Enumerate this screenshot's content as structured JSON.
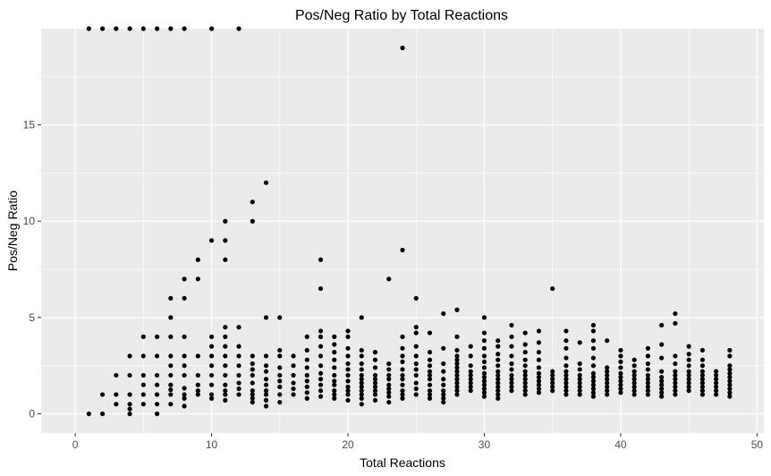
{
  "chart_data": {
    "type": "scatter",
    "title": "Pos/Neg Ratio by Total Reactions",
    "xlabel": "Total Reactions",
    "ylabel": "Pos/Neg Ratio",
    "xlim": [
      -2.5,
      50.5
    ],
    "ylim": [
      -1,
      20
    ],
    "xticks": [
      0,
      10,
      20,
      30,
      40,
      50
    ],
    "yticks": [
      0,
      5,
      10,
      15
    ],
    "grid": true,
    "panel_color": "#ebebeb",
    "grid_color": "#ffffff",
    "point_color": "#000000",
    "points": [
      [
        1,
        0
      ],
      [
        2,
        0
      ],
      [
        2,
        1
      ],
      [
        3,
        0.5
      ],
      [
        3,
        1
      ],
      [
        3,
        2
      ],
      [
        4,
        0
      ],
      [
        4,
        0.25
      ],
      [
        4,
        0.5
      ],
      [
        4,
        1
      ],
      [
        4,
        2
      ],
      [
        4,
        3
      ],
      [
        5,
        0.5
      ],
      [
        5,
        1
      ],
      [
        5,
        1.5
      ],
      [
        5,
        2
      ],
      [
        5,
        3
      ],
      [
        5,
        4
      ],
      [
        6,
        0
      ],
      [
        6,
        0.5
      ],
      [
        6,
        1
      ],
      [
        6,
        1.5
      ],
      [
        6,
        2
      ],
      [
        6,
        3
      ],
      [
        6,
        4
      ],
      [
        7,
        0.5
      ],
      [
        7,
        1
      ],
      [
        7,
        1.25
      ],
      [
        7,
        1.5
      ],
      [
        7,
        2
      ],
      [
        7,
        2.5
      ],
      [
        7,
        3
      ],
      [
        7,
        4
      ],
      [
        7,
        5
      ],
      [
        7,
        6
      ],
      [
        8,
        0.4
      ],
      [
        8,
        0.8
      ],
      [
        8,
        1
      ],
      [
        8,
        1.33
      ],
      [
        8,
        2
      ],
      [
        8,
        2.5
      ],
      [
        8,
        3
      ],
      [
        8,
        4
      ],
      [
        8,
        6
      ],
      [
        8,
        7
      ],
      [
        9,
        1
      ],
      [
        9,
        1.2
      ],
      [
        9,
        1.5
      ],
      [
        9,
        2
      ],
      [
        9,
        3
      ],
      [
        9,
        7
      ],
      [
        9,
        8
      ],
      [
        10,
        0.8
      ],
      [
        10,
        1
      ],
      [
        10,
        1.5
      ],
      [
        10,
        2
      ],
      [
        10,
        2.5
      ],
      [
        10,
        3
      ],
      [
        10,
        3.5
      ],
      [
        10,
        4
      ],
      [
        10,
        9
      ],
      [
        11,
        0.7
      ],
      [
        11,
        1
      ],
      [
        11,
        1.2
      ],
      [
        11,
        1.5
      ],
      [
        11,
        2
      ],
      [
        11,
        2.5
      ],
      [
        11,
        3
      ],
      [
        11,
        3.5
      ],
      [
        11,
        4
      ],
      [
        11,
        4.5
      ],
      [
        11,
        8
      ],
      [
        11,
        9
      ],
      [
        11,
        10
      ],
      [
        12,
        1
      ],
      [
        12,
        1.3
      ],
      [
        12,
        1.6
      ],
      [
        12,
        2
      ],
      [
        12,
        2.5
      ],
      [
        12,
        3
      ],
      [
        12,
        3.5
      ],
      [
        12,
        4.5
      ],
      [
        13,
        0.6
      ],
      [
        13,
        0.8
      ],
      [
        13,
        1
      ],
      [
        13,
        1.2
      ],
      [
        13,
        1.6
      ],
      [
        13,
        2
      ],
      [
        13,
        2.3
      ],
      [
        13,
        2.6
      ],
      [
        13,
        3
      ],
      [
        13,
        10
      ],
      [
        13,
        11
      ],
      [
        14,
        0.4
      ],
      [
        14,
        0.7
      ],
      [
        14,
        1
      ],
      [
        14,
        1.2
      ],
      [
        14,
        1.5
      ],
      [
        14,
        1.8
      ],
      [
        14,
        2.2
      ],
      [
        14,
        2.5
      ],
      [
        14,
        3
      ],
      [
        14,
        5
      ],
      [
        14,
        12
      ],
      [
        15,
        0.6
      ],
      [
        15,
        1
      ],
      [
        15,
        1.4
      ],
      [
        15,
        1.7
      ],
      [
        15,
        2
      ],
      [
        15,
        2.4
      ],
      [
        15,
        3
      ],
      [
        15,
        3.3
      ],
      [
        15,
        5
      ],
      [
        16,
        1
      ],
      [
        16,
        1.3
      ],
      [
        16,
        1.6
      ],
      [
        16,
        2
      ],
      [
        16,
        2.5
      ],
      [
        16,
        3
      ],
      [
        17,
        0.8
      ],
      [
        17,
        1.1
      ],
      [
        17,
        1.4
      ],
      [
        17,
        1.7
      ],
      [
        17,
        2
      ],
      [
        17,
        2.4
      ],
      [
        17,
        2.8
      ],
      [
        17,
        3.3
      ],
      [
        17,
        4
      ],
      [
        18,
        0.9
      ],
      [
        18,
        1.2
      ],
      [
        18,
        1.5
      ],
      [
        18,
        1.8
      ],
      [
        18,
        2.1
      ],
      [
        18,
        2.5
      ],
      [
        18,
        3
      ],
      [
        18,
        3.5
      ],
      [
        18,
        4
      ],
      [
        18,
        4.3
      ],
      [
        18,
        6.5
      ],
      [
        18,
        8
      ],
      [
        19,
        0.8
      ],
      [
        19,
        1
      ],
      [
        19,
        1.2
      ],
      [
        19,
        1.5
      ],
      [
        19,
        1.7
      ],
      [
        19,
        2
      ],
      [
        19,
        2.4
      ],
      [
        19,
        2.8
      ],
      [
        19,
        3.2
      ],
      [
        19,
        3.6
      ],
      [
        19,
        4
      ],
      [
        20,
        0.7
      ],
      [
        20,
        1
      ],
      [
        20,
        1.2
      ],
      [
        20,
        1.4
      ],
      [
        20,
        1.7
      ],
      [
        20,
        2
      ],
      [
        20,
        2.3
      ],
      [
        20,
        2.6
      ],
      [
        20,
        3
      ],
      [
        20,
        3.4
      ],
      [
        20,
        4
      ],
      [
        20,
        4.3
      ],
      [
        21,
        0.5
      ],
      [
        21,
        0.8
      ],
      [
        21,
        1
      ],
      [
        21,
        1.2
      ],
      [
        21,
        1.4
      ],
      [
        21,
        1.6
      ],
      [
        21,
        1.8
      ],
      [
        21,
        2
      ],
      [
        21,
        2.3
      ],
      [
        21,
        2.6
      ],
      [
        21,
        3
      ],
      [
        21,
        3.3
      ],
      [
        21,
        5
      ],
      [
        22,
        0.7
      ],
      [
        22,
        1
      ],
      [
        22,
        1.2
      ],
      [
        22,
        1.4
      ],
      [
        22,
        1.6
      ],
      [
        22,
        1.8
      ],
      [
        22,
        2
      ],
      [
        22,
        2.4
      ],
      [
        22,
        2.8
      ],
      [
        22,
        3.2
      ],
      [
        23,
        0.6
      ],
      [
        23,
        0.9
      ],
      [
        23,
        1.1
      ],
      [
        23,
        1.3
      ],
      [
        23,
        1.5
      ],
      [
        23,
        1.8
      ],
      [
        23,
        2
      ],
      [
        23,
        2.3
      ],
      [
        23,
        2.6
      ],
      [
        23,
        7
      ],
      [
        24,
        0.8
      ],
      [
        24,
        1
      ],
      [
        24,
        1.2
      ],
      [
        24,
        1.5
      ],
      [
        24,
        1.8
      ],
      [
        24,
        2
      ],
      [
        24,
        2.3
      ],
      [
        24,
        2.7
      ],
      [
        24,
        3
      ],
      [
        24,
        3.4
      ],
      [
        24,
        4
      ],
      [
        24,
        8.5
      ],
      [
        24,
        19
      ],
      [
        25,
        1
      ],
      [
        25,
        1.3
      ],
      [
        25,
        1.6
      ],
      [
        25,
        2
      ],
      [
        25,
        2.3
      ],
      [
        25,
        2.6
      ],
      [
        25,
        3
      ],
      [
        25,
        3.5
      ],
      [
        25,
        4.2
      ],
      [
        25,
        4.5
      ],
      [
        25,
        6
      ],
      [
        26,
        0.8
      ],
      [
        26,
        1
      ],
      [
        26,
        1.2
      ],
      [
        26,
        1.5
      ],
      [
        26,
        1.8
      ],
      [
        26,
        2
      ],
      [
        26,
        2.2
      ],
      [
        26,
        2.5
      ],
      [
        26,
        2.8
      ],
      [
        26,
        3.2
      ],
      [
        26,
        4.2
      ],
      [
        27,
        0.6
      ],
      [
        27,
        0.8
      ],
      [
        27,
        1
      ],
      [
        27,
        1.2
      ],
      [
        27,
        1.5
      ],
      [
        27,
        1.8
      ],
      [
        27,
        2.2
      ],
      [
        27,
        2.6
      ],
      [
        27,
        3.4
      ],
      [
        27,
        5.2
      ],
      [
        28,
        1
      ],
      [
        28,
        1.2
      ],
      [
        28,
        1.4
      ],
      [
        28,
        1.6
      ],
      [
        28,
        1.8
      ],
      [
        28,
        2
      ],
      [
        28,
        2.2
      ],
      [
        28,
        2.4
      ],
      [
        28,
        2.6
      ],
      [
        28,
        2.8
      ],
      [
        28,
        3
      ],
      [
        28,
        3.3
      ],
      [
        28,
        4
      ],
      [
        28,
        5.4
      ],
      [
        29,
        1.2
      ],
      [
        29,
        1.4
      ],
      [
        29,
        1.6
      ],
      [
        29,
        1.8
      ],
      [
        29,
        2
      ],
      [
        29,
        2.2
      ],
      [
        29,
        2.5
      ],
      [
        29,
        3
      ],
      [
        29,
        3.5
      ],
      [
        30,
        0.9
      ],
      [
        30,
        1.1
      ],
      [
        30,
        1.3
      ],
      [
        30,
        1.5
      ],
      [
        30,
        1.7
      ],
      [
        30,
        1.9
      ],
      [
        30,
        2.1
      ],
      [
        30,
        2.4
      ],
      [
        30,
        2.7
      ],
      [
        30,
        3
      ],
      [
        30,
        3.4
      ],
      [
        30,
        3.8
      ],
      [
        30,
        4.2
      ],
      [
        30,
        5
      ],
      [
        31,
        0.8
      ],
      [
        31,
        1
      ],
      [
        31,
        1.2
      ],
      [
        31,
        1.4
      ],
      [
        31,
        1.6
      ],
      [
        31,
        1.8
      ],
      [
        31,
        2
      ],
      [
        31,
        2.2
      ],
      [
        31,
        2.5
      ],
      [
        31,
        2.8
      ],
      [
        31,
        3.1
      ],
      [
        31,
        3.5
      ],
      [
        31,
        3.8
      ],
      [
        32,
        1.2
      ],
      [
        32,
        1.4
      ],
      [
        32,
        1.6
      ],
      [
        32,
        1.8
      ],
      [
        32,
        2
      ],
      [
        32,
        2.3
      ],
      [
        32,
        2.6
      ],
      [
        32,
        3
      ],
      [
        32,
        3.5
      ],
      [
        32,
        4
      ],
      [
        32,
        4.6
      ],
      [
        33,
        1
      ],
      [
        33,
        1.2
      ],
      [
        33,
        1.4
      ],
      [
        33,
        1.6
      ],
      [
        33,
        1.8
      ],
      [
        33,
        2
      ],
      [
        33,
        2.2
      ],
      [
        33,
        2.5
      ],
      [
        33,
        2.8
      ],
      [
        33,
        3.2
      ],
      [
        33,
        3.6
      ],
      [
        33,
        4.2
      ],
      [
        34,
        1.1
      ],
      [
        34,
        1.3
      ],
      [
        34,
        1.5
      ],
      [
        34,
        1.7
      ],
      [
        34,
        1.9
      ],
      [
        34,
        2.1
      ],
      [
        34,
        2.4
      ],
      [
        34,
        2.8
      ],
      [
        34,
        3.2
      ],
      [
        34,
        3.7
      ],
      [
        34,
        4.3
      ],
      [
        35,
        1.2
      ],
      [
        35,
        1.4
      ],
      [
        35,
        1.6
      ],
      [
        35,
        1.8
      ],
      [
        35,
        2
      ],
      [
        35,
        2.2
      ],
      [
        35,
        6.5
      ],
      [
        36,
        1
      ],
      [
        36,
        1.2
      ],
      [
        36,
        1.4
      ],
      [
        36,
        1.6
      ],
      [
        36,
        1.8
      ],
      [
        36,
        2
      ],
      [
        36,
        2.2
      ],
      [
        36,
        2.5
      ],
      [
        36,
        2.9
      ],
      [
        36,
        3.4
      ],
      [
        36,
        3.8
      ],
      [
        36,
        4.3
      ],
      [
        37,
        1
      ],
      [
        37,
        1.2
      ],
      [
        37,
        1.4
      ],
      [
        37,
        1.6
      ],
      [
        37,
        1.8
      ],
      [
        37,
        2
      ],
      [
        37,
        2.3
      ],
      [
        37,
        2.6
      ],
      [
        37,
        3.7
      ],
      [
        38,
        0.9
      ],
      [
        38,
        1.1
      ],
      [
        38,
        1.3
      ],
      [
        38,
        1.5
      ],
      [
        38,
        1.7
      ],
      [
        38,
        1.9
      ],
      [
        38,
        2.1
      ],
      [
        38,
        2.5
      ],
      [
        38,
        2.9
      ],
      [
        38,
        3.4
      ],
      [
        38,
        3.8
      ],
      [
        38,
        4.3
      ],
      [
        38,
        4.6
      ],
      [
        39,
        1
      ],
      [
        39,
        1.2
      ],
      [
        39,
        1.4
      ],
      [
        39,
        1.6
      ],
      [
        39,
        1.8
      ],
      [
        39,
        2
      ],
      [
        39,
        2.2
      ],
      [
        39,
        2.4
      ],
      [
        39,
        3.8
      ],
      [
        40,
        1.1
      ],
      [
        40,
        1.3
      ],
      [
        40,
        1.5
      ],
      [
        40,
        1.7
      ],
      [
        40,
        1.9
      ],
      [
        40,
        2.1
      ],
      [
        40,
        2.4
      ],
      [
        40,
        2.7
      ],
      [
        40,
        3
      ],
      [
        40,
        3.3
      ],
      [
        41,
        1
      ],
      [
        41,
        1.2
      ],
      [
        41,
        1.4
      ],
      [
        41,
        1.6
      ],
      [
        41,
        1.8
      ],
      [
        41,
        2
      ],
      [
        41,
        2.2
      ],
      [
        41,
        2.5
      ],
      [
        41,
        2.8
      ],
      [
        42,
        1
      ],
      [
        42,
        1.2
      ],
      [
        42,
        1.4
      ],
      [
        42,
        1.6
      ],
      [
        42,
        1.8
      ],
      [
        42,
        2
      ],
      [
        42,
        2.3
      ],
      [
        42,
        2.6
      ],
      [
        42,
        3
      ],
      [
        42,
        3.4
      ],
      [
        43,
        0.9
      ],
      [
        43,
        1.1
      ],
      [
        43,
        1.3
      ],
      [
        43,
        1.5
      ],
      [
        43,
        1.7
      ],
      [
        43,
        1.9
      ],
      [
        43,
        2.2
      ],
      [
        43,
        2.9
      ],
      [
        43,
        3.6
      ],
      [
        43,
        4.6
      ],
      [
        44,
        1
      ],
      [
        44,
        1.2
      ],
      [
        44,
        1.4
      ],
      [
        44,
        1.6
      ],
      [
        44,
        1.8
      ],
      [
        44,
        2
      ],
      [
        44,
        2.2
      ],
      [
        44,
        2.6
      ],
      [
        44,
        3
      ],
      [
        44,
        4.7
      ],
      [
        44,
        5.2
      ],
      [
        45,
        1.2
      ],
      [
        45,
        1.4
      ],
      [
        45,
        1.6
      ],
      [
        45,
        1.8
      ],
      [
        45,
        2
      ],
      [
        45,
        2.2
      ],
      [
        45,
        2.5
      ],
      [
        45,
        2.8
      ],
      [
        45,
        3.1
      ],
      [
        45,
        3.5
      ],
      [
        46,
        1
      ],
      [
        46,
        1.2
      ],
      [
        46,
        1.4
      ],
      [
        46,
        1.6
      ],
      [
        46,
        1.8
      ],
      [
        46,
        2
      ],
      [
        46,
        2.2
      ],
      [
        46,
        2.5
      ],
      [
        46,
        2.8
      ],
      [
        46,
        3.3
      ],
      [
        47,
        1
      ],
      [
        47,
        1.2
      ],
      [
        47,
        1.4
      ],
      [
        47,
        1.6
      ],
      [
        47,
        1.8
      ],
      [
        47,
        2
      ],
      [
        47,
        2.2
      ],
      [
        48,
        0.9
      ],
      [
        48,
        1.1
      ],
      [
        48,
        1.3
      ],
      [
        48,
        1.5
      ],
      [
        48,
        1.7
      ],
      [
        48,
        1.9
      ],
      [
        48,
        2.1
      ],
      [
        48,
        2.3
      ],
      [
        48,
        2.5
      ],
      [
        48,
        3
      ],
      [
        48,
        3.3
      ]
    ],
    "points_above_ylim": [
      [
        1,
        20
      ],
      [
        2,
        20
      ],
      [
        3,
        20
      ],
      [
        4,
        20
      ],
      [
        5,
        20
      ],
      [
        6,
        20
      ],
      [
        7,
        20
      ],
      [
        8,
        20
      ],
      [
        10,
        20
      ],
      [
        12,
        20
      ]
    ]
  }
}
